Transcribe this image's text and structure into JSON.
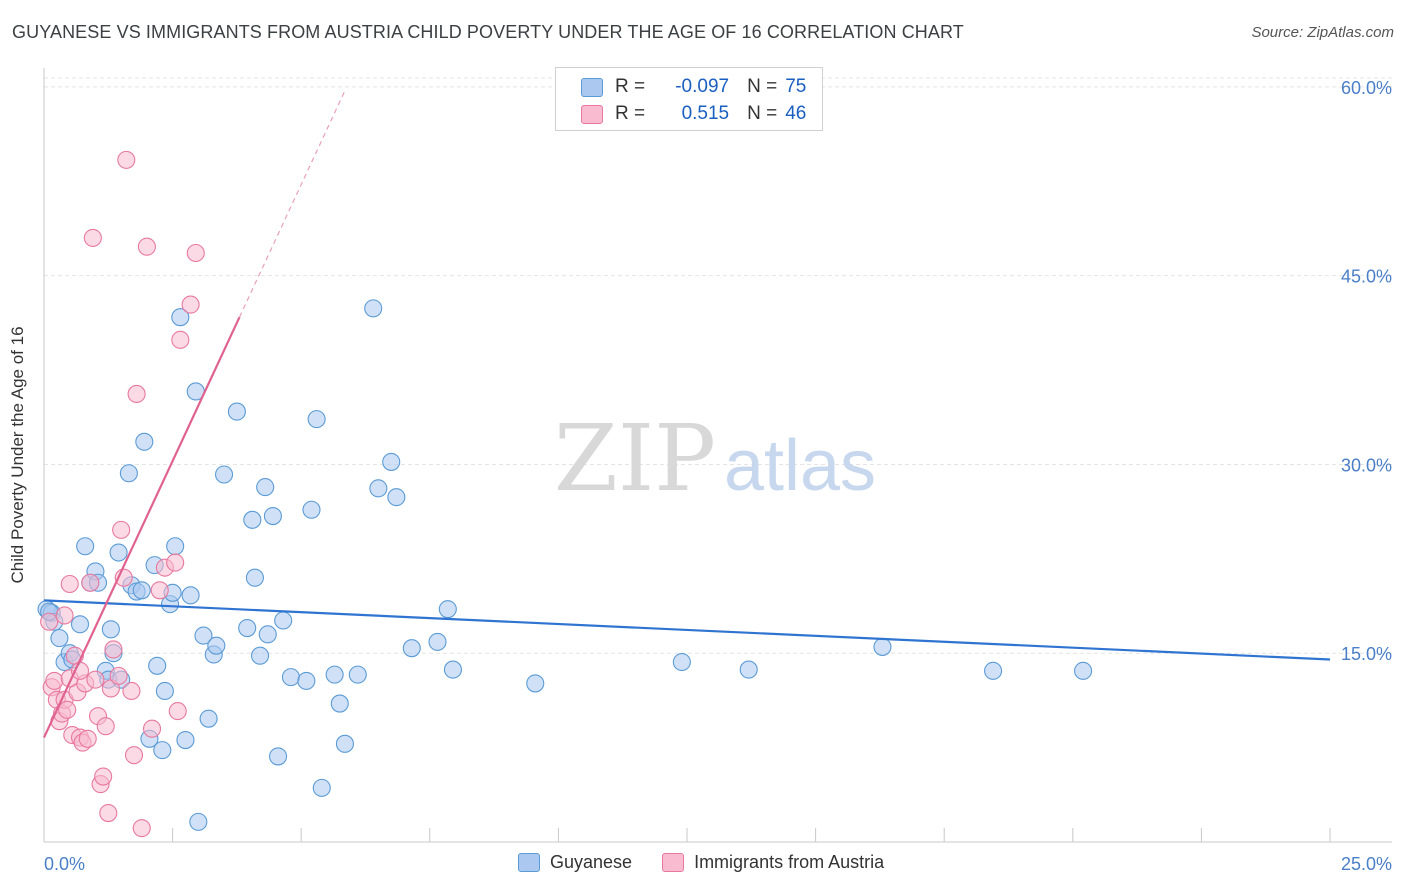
{
  "title": "GUYANESE VS IMMIGRANTS FROM AUSTRIA CHILD POVERTY UNDER THE AGE OF 16 CORRELATION CHART",
  "source": "Source: ZipAtlas.com",
  "watermark": {
    "zip": "ZIP",
    "atlas": "atlas"
  },
  "legend": {
    "rows": [
      {
        "r_label": "R =",
        "r_value": "-0.097",
        "n_label": "N =",
        "n_value": "75",
        "color": "#aac8f0"
      },
      {
        "r_label": "R =",
        "r_value": "0.515",
        "n_label": "N =",
        "n_value": "46",
        "color": "#f8bbd0"
      }
    ]
  },
  "bottom_legend": {
    "series_a": "Guyanese",
    "series_b": "Immigrants from Austria"
  },
  "chart_data": {
    "type": "scatter",
    "title": "GUYANESE VS IMMIGRANTS FROM AUSTRIA CHILD POVERTY UNDER THE AGE OF 16 CORRELATION CHART",
    "xlabel": "",
    "ylabel": "Child Poverty Under the Age of 16",
    "xlim": [
      0,
      25
    ],
    "ylim": [
      0,
      61.5
    ],
    "x_tick_labels": [
      {
        "value": 0,
        "label": "0.0%"
      },
      {
        "value": 25,
        "label": "25.0%"
      }
    ],
    "x_minor_ticks": [
      2.5,
      5,
      7.5,
      10,
      12.5,
      15,
      17.5,
      20,
      22.5,
      25
    ],
    "y_ticks": [
      {
        "value": 15,
        "label": "15.0%"
      },
      {
        "value": 30,
        "label": "30.0%"
      },
      {
        "value": 45,
        "label": "45.0%"
      },
      {
        "value": 60,
        "label": "60.0%"
      }
    ],
    "grid": true,
    "series": [
      {
        "name": "Guyanese",
        "color": "#5b9bd5",
        "fill": "#aac8f0",
        "R": -0.097,
        "N": 75,
        "trend": {
          "x0": 0,
          "y0": 19.2,
          "x1": 25,
          "y1": 14.5
        },
        "points": [
          [
            0.05,
            18.5
          ],
          [
            0.15,
            18.2
          ],
          [
            0.2,
            17.5
          ],
          [
            0.3,
            16.2
          ],
          [
            0.4,
            14.3
          ],
          [
            0.5,
            15.0
          ],
          [
            0.55,
            14.5
          ],
          [
            0.7,
            17.3
          ],
          [
            0.8,
            23.5
          ],
          [
            0.9,
            20.6
          ],
          [
            1.0,
            21.5
          ],
          [
            1.05,
            20.6
          ],
          [
            1.2,
            13.6
          ],
          [
            1.25,
            12.9
          ],
          [
            1.3,
            16.9
          ],
          [
            1.35,
            15.0
          ],
          [
            1.45,
            23.0
          ],
          [
            1.5,
            12.9
          ],
          [
            1.65,
            29.3
          ],
          [
            1.7,
            20.4
          ],
          [
            1.8,
            19.9
          ],
          [
            1.9,
            20.0
          ],
          [
            1.95,
            31.8
          ],
          [
            2.05,
            8.2
          ],
          [
            2.15,
            22.0
          ],
          [
            2.2,
            14.0
          ],
          [
            2.3,
            7.3
          ],
          [
            2.35,
            12.0
          ],
          [
            2.45,
            18.9
          ],
          [
            2.5,
            19.8
          ],
          [
            2.55,
            23.5
          ],
          [
            2.65,
            41.7
          ],
          [
            2.75,
            8.1
          ],
          [
            2.85,
            19.6
          ],
          [
            2.95,
            35.8
          ],
          [
            3.0,
            1.6
          ],
          [
            3.1,
            16.4
          ],
          [
            3.2,
            9.8
          ],
          [
            3.3,
            14.9
          ],
          [
            3.35,
            15.6
          ],
          [
            3.5,
            29.2
          ],
          [
            3.75,
            34.2
          ],
          [
            3.95,
            17.0
          ],
          [
            4.05,
            25.6
          ],
          [
            4.1,
            21.0
          ],
          [
            4.2,
            14.8
          ],
          [
            4.3,
            28.2
          ],
          [
            4.35,
            16.5
          ],
          [
            4.45,
            25.9
          ],
          [
            4.55,
            6.8
          ],
          [
            4.65,
            17.6
          ],
          [
            4.8,
            13.1
          ],
          [
            5.1,
            12.8
          ],
          [
            5.2,
            26.4
          ],
          [
            5.3,
            33.6
          ],
          [
            5.4,
            4.3
          ],
          [
            5.65,
            13.3
          ],
          [
            5.75,
            11.0
          ],
          [
            5.85,
            7.8
          ],
          [
            6.1,
            13.3
          ],
          [
            6.4,
            42.4
          ],
          [
            6.5,
            28.1
          ],
          [
            6.75,
            30.2
          ],
          [
            6.85,
            27.4
          ],
          [
            7.15,
            15.4
          ],
          [
            7.65,
            15.9
          ],
          [
            7.85,
            18.5
          ],
          [
            7.95,
            13.7
          ],
          [
            9.55,
            12.6
          ],
          [
            12.4,
            14.3
          ],
          [
            13.7,
            13.7
          ],
          [
            16.3,
            15.5
          ],
          [
            18.45,
            13.6
          ],
          [
            20.2,
            13.6
          ],
          [
            0.1,
            18.3
          ]
        ]
      },
      {
        "name": "Immigrants from Austria",
        "color": "#e8799e",
        "fill": "#f8bbd0",
        "R": 0.515,
        "N": 46,
        "trend": {
          "x0": 0,
          "y0": 8.3,
          "x1": 3.8,
          "y1": 41.7
        },
        "trend_extension": {
          "x0": 3.8,
          "y0": 41.7,
          "x1": 5.85,
          "y1": 59.7
        },
        "points": [
          [
            0.1,
            17.5
          ],
          [
            0.15,
            12.3
          ],
          [
            0.2,
            12.8
          ],
          [
            0.25,
            11.3
          ],
          [
            0.3,
            9.6
          ],
          [
            0.35,
            10.2
          ],
          [
            0.4,
            11.3
          ],
          [
            0.45,
            10.5
          ],
          [
            0.5,
            20.5
          ],
          [
            0.55,
            8.5
          ],
          [
            0.6,
            14.8
          ],
          [
            0.65,
            11.9
          ],
          [
            0.7,
            8.3
          ],
          [
            0.75,
            7.9
          ],
          [
            0.8,
            12.6
          ],
          [
            0.85,
            8.2
          ],
          [
            0.9,
            20.6
          ],
          [
            0.95,
            48.0
          ],
          [
            1.0,
            12.9
          ],
          [
            1.05,
            10.0
          ],
          [
            1.1,
            4.6
          ],
          [
            1.15,
            5.2
          ],
          [
            1.2,
            9.2
          ],
          [
            1.25,
            2.3
          ],
          [
            1.3,
            12.2
          ],
          [
            1.35,
            15.3
          ],
          [
            1.45,
            13.2
          ],
          [
            1.5,
            24.8
          ],
          [
            1.55,
            21.0
          ],
          [
            1.6,
            54.2
          ],
          [
            1.7,
            12.0
          ],
          [
            1.75,
            6.9
          ],
          [
            1.8,
            35.6
          ],
          [
            1.9,
            1.1
          ],
          [
            2.0,
            47.3
          ],
          [
            2.1,
            9.0
          ],
          [
            2.25,
            20.0
          ],
          [
            2.35,
            21.8
          ],
          [
            2.55,
            22.2
          ],
          [
            2.6,
            10.4
          ],
          [
            2.65,
            39.9
          ],
          [
            2.85,
            42.7
          ],
          [
            2.95,
            46.8
          ],
          [
            0.4,
            18.0
          ],
          [
            0.5,
            13.0
          ],
          [
            0.7,
            13.6
          ]
        ]
      }
    ]
  }
}
